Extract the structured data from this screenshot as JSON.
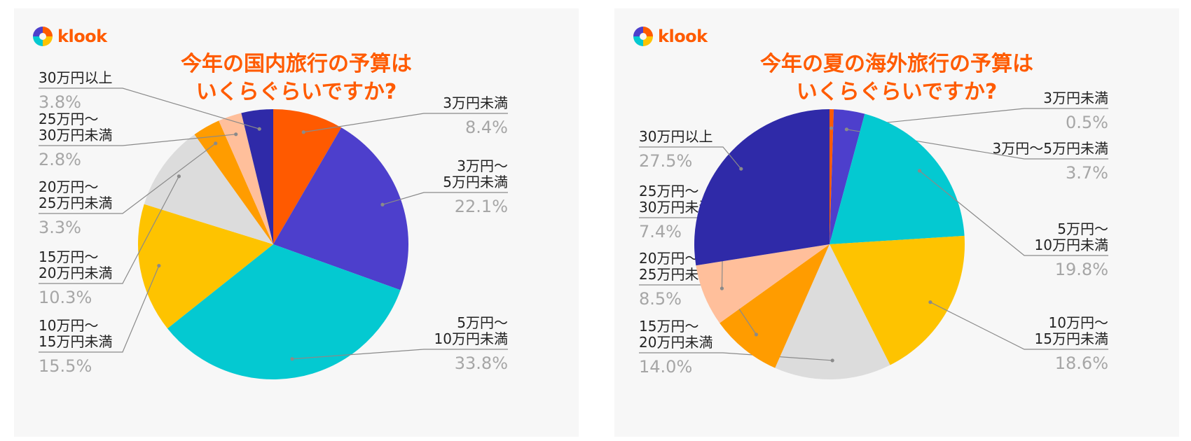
{
  "brand": {
    "name": "klook",
    "icon": "klook-pinwheel-logo-icon"
  },
  "chart_data": [
    {
      "type": "pie",
      "title": "今年の国内旅行の予算は\nいくらぐらいですか?",
      "slices": [
        {
          "label": "3万円未満",
          "value": 8.4,
          "display": "8.4%",
          "color": "#ff5a00"
        },
        {
          "label": "3万円〜\n5万円未満",
          "value": 22.1,
          "display": "22.1%",
          "color": "#4d3fcc"
        },
        {
          "label": "5万円〜\n10万円未満",
          "value": 33.8,
          "display": "33.8%",
          "color": "#04c9d1"
        },
        {
          "label": "10万円〜\n15万円未満",
          "value": 15.5,
          "display": "15.5%",
          "color": "#fec300"
        },
        {
          "label": "15万円〜\n20万円未満",
          "value": 10.3,
          "display": "10.3%",
          "color": "#dcdcdc"
        },
        {
          "label": "20万円〜\n25万円未満",
          "value": 3.3,
          "display": "3.3%",
          "color": "#ff9c00"
        },
        {
          "label": "25万円〜\n30万円未満",
          "value": 2.8,
          "display": "2.8%",
          "color": "#ffbf9b"
        },
        {
          "label": "30万円以上",
          "value": 3.8,
          "display": "3.8%",
          "color": "#2f2aa8"
        }
      ]
    },
    {
      "type": "pie",
      "title": "今年の夏の海外旅行の予算は\nいくらぐらいですか?",
      "slices": [
        {
          "label": "3万円未満",
          "value": 0.5,
          "display": "0.5%",
          "color": "#ff5a00"
        },
        {
          "label": "3万円〜5万円未満",
          "value": 3.7,
          "display": "3.7%",
          "color": "#4d3fcc"
        },
        {
          "label": "5万円〜\n10万円未満",
          "value": 19.8,
          "display": "19.8%",
          "color": "#04c9d1"
        },
        {
          "label": "10万円〜\n15万円未満",
          "value": 18.6,
          "display": "18.6%",
          "color": "#fec300"
        },
        {
          "label": "15万円〜\n20万円未満",
          "value": 14.0,
          "display": "14.0%",
          "color": "#dcdcdc"
        },
        {
          "label": "20万円〜\n25万円未満",
          "value": 8.5,
          "display": "8.5%",
          "color": "#ff9c00"
        },
        {
          "label": "25万円〜\n30万円未満",
          "value": 7.4,
          "display": "7.4%",
          "color": "#ffbf9b"
        },
        {
          "label": "30万円以上",
          "value": 27.5,
          "display": "27.5%",
          "color": "#2f2aa8"
        }
      ]
    }
  ]
}
